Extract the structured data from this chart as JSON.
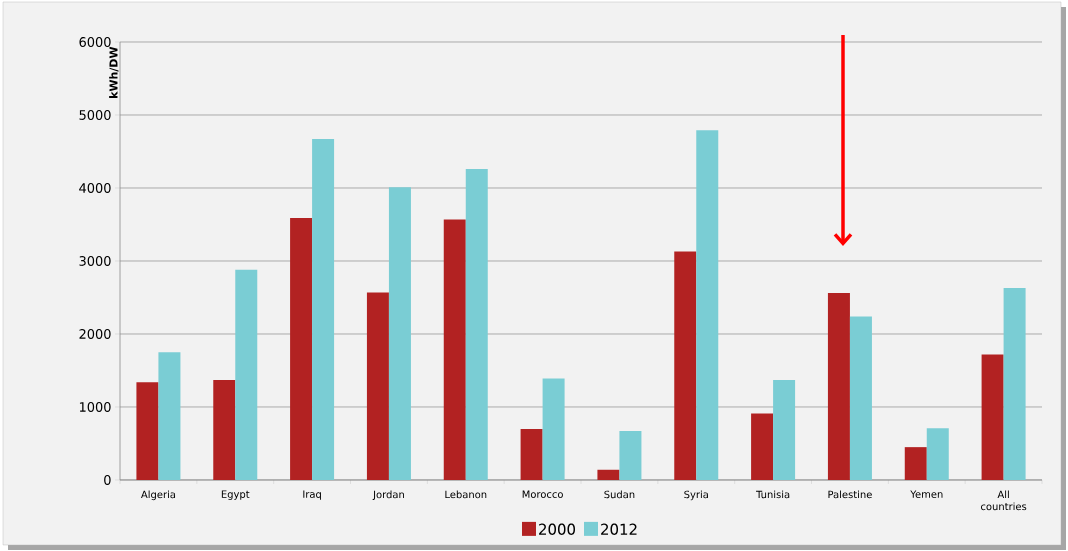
{
  "chart_data": {
    "type": "bar",
    "ylabel": "kWh/DW",
    "categories": [
      "Algeria",
      "Egypt",
      "Iraq",
      "Jordan",
      "Lebanon",
      "Morocco",
      "Sudan",
      "Syria",
      "Tunisia",
      "Palestine",
      "Yemen",
      "All countries"
    ],
    "series": [
      {
        "name": "2000",
        "color": "#b22222",
        "values": [
          1340,
          1370,
          3590,
          2570,
          3570,
          700,
          140,
          3130,
          910,
          2560,
          450,
          1720
        ]
      },
      {
        "name": "2012",
        "color": "#7acdd4",
        "values": [
          1750,
          2880,
          4670,
          4010,
          4260,
          1390,
          670,
          4790,
          1370,
          2240,
          710,
          2630
        ]
      }
    ],
    "ylim": [
      0,
      6000
    ],
    "yticks": [
      0,
      1000,
      2000,
      3000,
      4000,
      5000,
      6000
    ],
    "grid": "y",
    "legend": "bottom"
  }
}
